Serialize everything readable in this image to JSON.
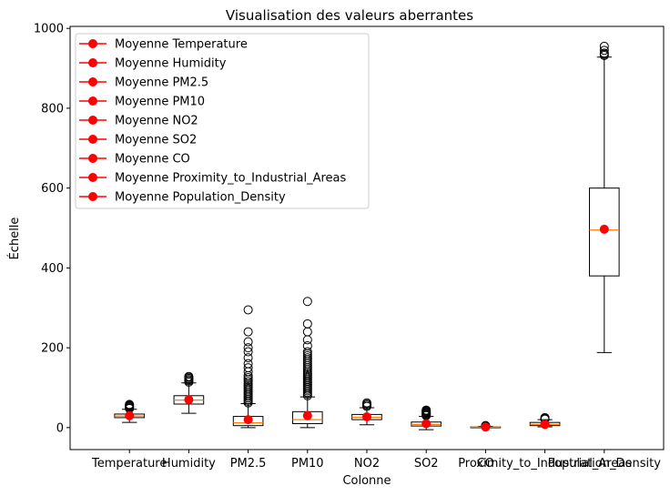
{
  "chart_data": {
    "type": "box",
    "title": "Visualisation des valeurs aberrantes",
    "xlabel": "Colonne",
    "ylabel": "Échelle",
    "ylim": [
      -55,
      1005
    ],
    "yticks": [
      0,
      200,
      400,
      600,
      800,
      1000
    ],
    "grid": false,
    "legend_position": "top-left",
    "colors": {
      "box": "#000000",
      "median": "#ff7f0e",
      "mean": "#ff0000"
    },
    "categories": [
      "Temperature",
      "Humidity",
      "PM2.5",
      "PM10",
      "NO2",
      "SO2",
      "CO",
      "Proximity_to_Industrial_Areas",
      "Population_Density"
    ],
    "series": [
      {
        "category": "Temperature",
        "q1": 25,
        "median": 29,
        "q3": 34,
        "whisker_low": 13,
        "whisker_high": 46,
        "mean": 30,
        "outliers": [
          48,
          50,
          52,
          54,
          56,
          58
        ]
      },
      {
        "category": "Humidity",
        "q1": 59,
        "median": 69,
        "q3": 80,
        "whisker_low": 36,
        "whisker_high": 112,
        "mean": 70,
        "outliers": [
          114,
          117,
          120,
          123,
          126,
          128
        ]
      },
      {
        "category": "PM2.5",
        "q1": 5,
        "median": 12,
        "q3": 28,
        "whisker_low": 0,
        "whisker_high": 60,
        "mean": 20,
        "outliers": [
          62,
          66,
          70,
          74,
          78,
          82,
          86,
          90,
          94,
          98,
          102,
          106,
          110,
          115,
          120,
          125,
          130,
          140,
          150,
          160,
          175,
          190,
          200,
          215,
          240,
          295
        ]
      },
      {
        "category": "PM10",
        "q1": 10,
        "median": 20,
        "q3": 40,
        "whisker_low": 0,
        "whisker_high": 77,
        "mean": 30,
        "outliers": [
          80,
          84,
          88,
          92,
          96,
          100,
          104,
          108,
          112,
          116,
          120,
          124,
          128,
          132,
          136,
          140,
          145,
          150,
          155,
          160,
          165,
          170,
          175,
          180,
          185,
          190,
          205,
          220,
          240,
          260,
          316
        ]
      },
      {
        "category": "NO2",
        "q1": 20,
        "median": 26,
        "q3": 33,
        "whisker_low": 7,
        "whisker_high": 50,
        "mean": 27,
        "outliers": [
          53,
          56,
          59,
          62
        ]
      },
      {
        "category": "SO2",
        "q1": 4,
        "median": 8,
        "q3": 14,
        "whisker_low": -5,
        "whisker_high": 28,
        "mean": 10,
        "outliers": [
          30,
          32,
          34,
          36,
          38,
          40,
          42,
          44
        ]
      },
      {
        "category": "CO",
        "q1": 1,
        "median": 1.5,
        "q3": 2,
        "whisker_low": 0.6,
        "whisker_high": 3.2,
        "mean": 1.5,
        "outliers": [
          3.6,
          4.0,
          4.5,
          5.0
        ]
      },
      {
        "category": "Proximity_to_Industrial_Areas",
        "q1": 5,
        "median": 8,
        "q3": 13,
        "whisker_low": 2,
        "whisker_high": 20,
        "mean": 8,
        "outliers": [
          21,
          22,
          23,
          25
        ]
      },
      {
        "category": "Population_Density",
        "q1": 380,
        "median": 495,
        "q3": 600,
        "whisker_low": 188,
        "whisker_high": 928,
        "mean": 497,
        "outliers": [
          932,
          935,
          938,
          945,
          955
        ]
      }
    ],
    "legend": [
      "Moyenne Temperature",
      "Moyenne Humidity",
      "Moyenne PM2.5",
      "Moyenne PM10",
      "Moyenne NO2",
      "Moyenne SO2",
      "Moyenne CO",
      "Moyenne Proximity_to_Industrial_Areas",
      "Moyenne Population_Density"
    ]
  }
}
